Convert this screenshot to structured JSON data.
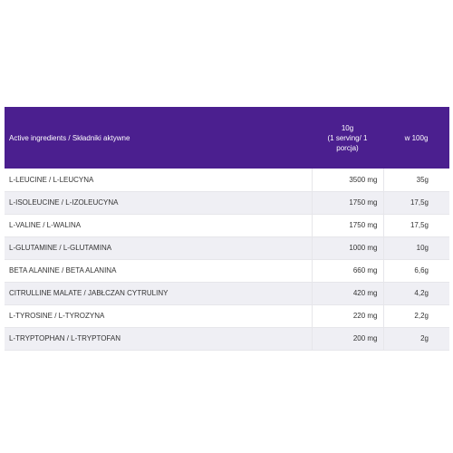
{
  "table": {
    "header": {
      "ingredients": "Active ingredients / Składniki aktywne",
      "serving": [
        "10g",
        "(1 serving/ 1",
        "porcja)"
      ],
      "per100": "w 100g"
    },
    "rows": [
      {
        "name": "L-LEUCINE / L-LEUCYNA",
        "serving": "3500 mg",
        "per100": "35g"
      },
      {
        "name": "L-ISOLEUCINE / L-IZOLEUCYNA",
        "serving": "1750 mg",
        "per100": "17,5g"
      },
      {
        "name": "L-VALINE /  L-WALINA",
        "serving": "1750 mg",
        "per100": "17,5g"
      },
      {
        "name": "L-GLUTAMINE / L-GLUTAMINA",
        "serving": "1000 mg",
        "per100": "10g"
      },
      {
        "name": "BETA ALANINE / BETA ALANINA",
        "serving": "660 mg",
        "per100": "6,6g"
      },
      {
        "name": "CITRULLINE MALATE / JABŁCZAN CYTRULINY",
        "serving": "420 mg",
        "per100": "4,2g"
      },
      {
        "name": "L-TYROSINE / L-TYROZYNA",
        "serving": "220 mg",
        "per100": "2,2g"
      },
      {
        "name": "L-TRYPTOPHAN / L-TRYPTOFAN",
        "serving": "200 mg",
        "per100": "2g"
      }
    ]
  }
}
